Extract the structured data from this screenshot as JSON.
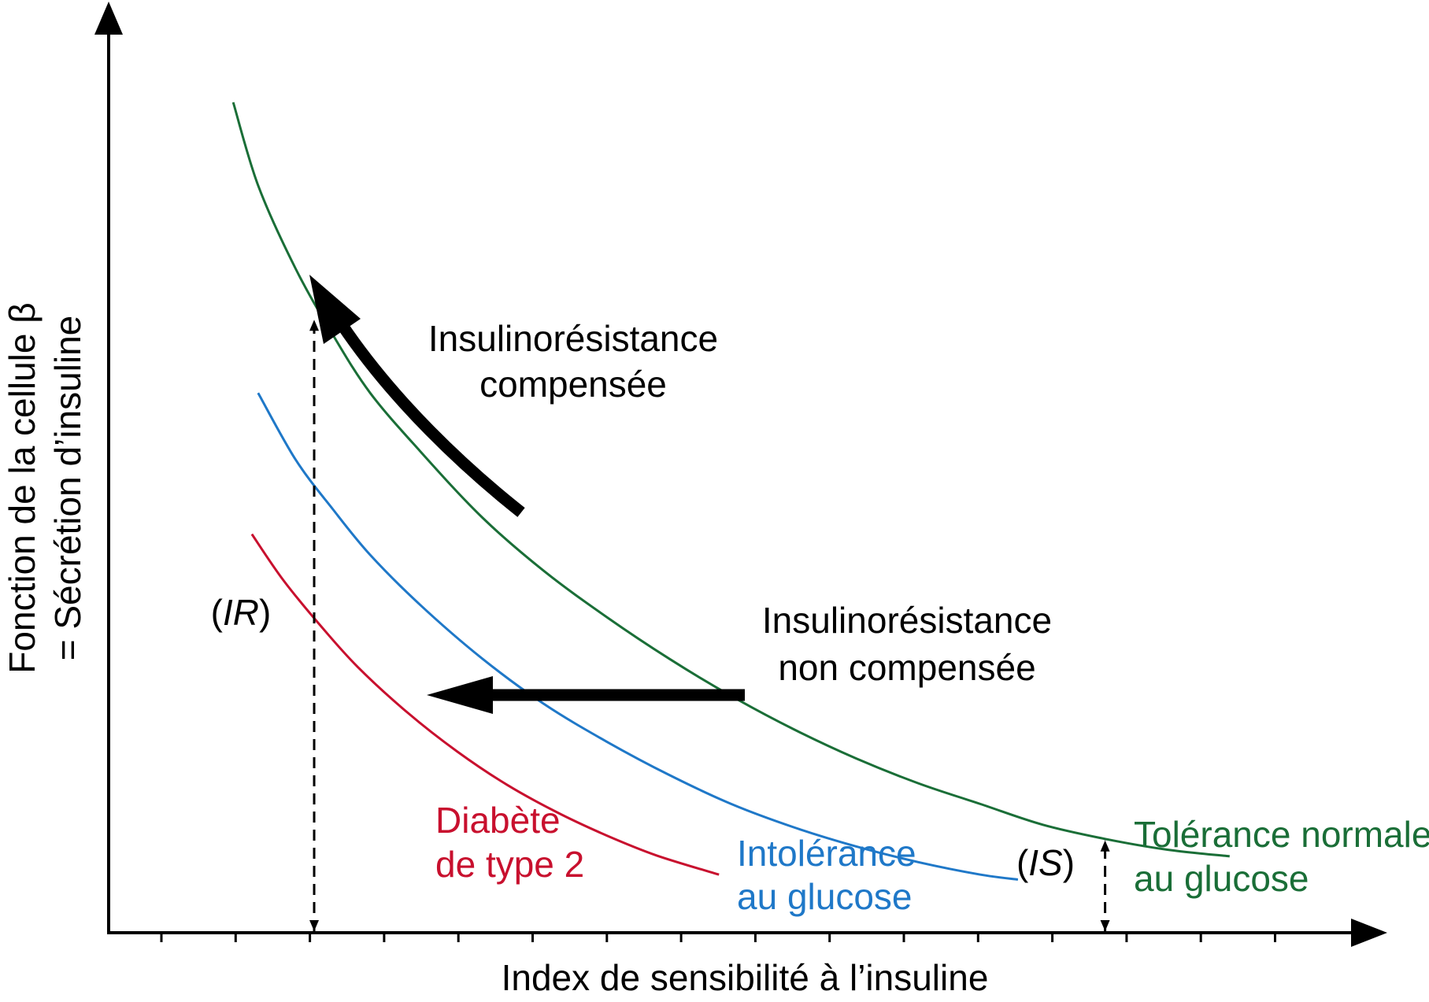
{
  "chart_data": {
    "type": "line",
    "title": "",
    "xlabel": "Index de sensibilité à l’insuline",
    "ylabel": [
      "Fonction de la cellule β",
      "= Sécrétion d’insuline"
    ],
    "xlim": [
      0,
      100
    ],
    "ylim": [
      0,
      100
    ],
    "x_ticks": 16,
    "axis_tick_labels": "none",
    "grid": false,
    "legend": "none",
    "series": [
      {
        "name": "Tolérance normale au glucose",
        "label_lines": [
          "Tolérance normale",
          "au glucose"
        ],
        "color": "#1a6e37",
        "x": [
          10,
          12,
          15,
          18,
          21,
          25,
          30,
          35,
          40,
          45,
          50,
          55,
          60,
          65,
          70,
          75,
          80,
          85,
          90
        ],
        "y": [
          100,
          90,
          80,
          72,
          65,
          58,
          50,
          43.5,
          38,
          33,
          28.5,
          24.5,
          21,
          18,
          15.5,
          13,
          11.3,
          10,
          9.2
        ]
      },
      {
        "name": "Intolérance au glucose",
        "label_lines": [
          "Intolérance",
          "au glucose"
        ],
        "color": "#1f78c8",
        "x": [
          12,
          15,
          18,
          21,
          25,
          30,
          35,
          40,
          45,
          50,
          55,
          60,
          65,
          70,
          73
        ],
        "y": [
          65,
          57,
          51,
          45.5,
          39.5,
          33,
          27.5,
          23,
          19,
          15.5,
          12.7,
          10.4,
          8.5,
          7,
          6.4
        ]
      },
      {
        "name": "Diabète de type 2",
        "label_lines": [
          "Diabète",
          "de type 2"
        ],
        "color": "#c8102e",
        "x": [
          11.5,
          14,
          17,
          20,
          24,
          28,
          32,
          36,
          40,
          44,
          49
        ],
        "y": [
          48,
          42.5,
          37,
          32,
          26.5,
          21.8,
          17.8,
          14.5,
          11.7,
          9.3,
          7
        ]
      }
    ],
    "annotations": [
      {
        "id": "ir",
        "text": "(IR)",
        "italic_part": "IR",
        "x": 16.5,
        "y_from": 0,
        "y_to": 74,
        "style": "dashed-double-arrow"
      },
      {
        "id": "is",
        "text": "(IS)",
        "italic_part": "IS",
        "x": 80,
        "y_from": 0,
        "y_to": 11.3,
        "style": "dashed-double-arrow"
      },
      {
        "id": "compensated",
        "lines": [
          "Insulinorésistance",
          "compensée"
        ],
        "arrow": "curved, pointing up-left along the normal-tolerance curve"
      },
      {
        "id": "uncompensated",
        "lines": [
          "Insulinorésistance",
          "non compensée"
        ],
        "arrow": "straight, pointing left"
      }
    ]
  },
  "colors": {
    "axis": "#000000",
    "arrow": "#000000"
  }
}
